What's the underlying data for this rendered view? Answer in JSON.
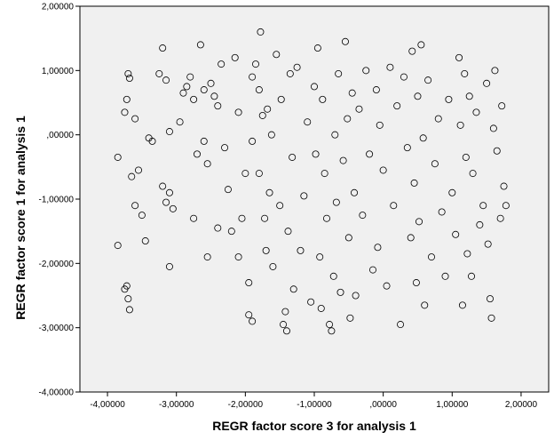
{
  "chart_data": {
    "type": "scatter",
    "xlabel": "REGR factor score   3 for analysis 1",
    "ylabel": "REGR factor score   1 for analysis 1",
    "xlim": [
      -4.4,
      2.4
    ],
    "ylim": [
      -4.0,
      2.0
    ],
    "x_ticks": [
      -4,
      -3,
      -2,
      -1,
      0,
      1,
      2
    ],
    "y_ticks": [
      -4,
      -3,
      -2,
      -1,
      0,
      1,
      2
    ],
    "x_tick_labels": [
      "-4,00000",
      "-3,00000",
      "-2,00000",
      "-1,00000",
      ",00000",
      "1,00000",
      "2,00000"
    ],
    "y_tick_labels": [
      "-4,00000",
      "-3,00000",
      "-2,00000",
      "-1,00000",
      ",00000",
      "1,00000",
      "2,00000"
    ],
    "grid": false,
    "plot_background": "#f0f0f0",
    "marker": "hollow-circle",
    "marker_color": "#000000",
    "points": [
      [
        -3.85,
        -0.35
      ],
      [
        -3.85,
        -1.72
      ],
      [
        -3.75,
        -2.4
      ],
      [
        -3.72,
        -2.35
      ],
      [
        -3.7,
        -2.55
      ],
      [
        -3.68,
        -2.72
      ],
      [
        -3.72,
        0.55
      ],
      [
        -3.7,
        0.95
      ],
      [
        -3.68,
        0.88
      ],
      [
        -3.75,
        0.35
      ],
      [
        -3.6,
        0.25
      ],
      [
        -3.65,
        -0.65
      ],
      [
        -3.55,
        -0.55
      ],
      [
        -3.6,
        -1.1
      ],
      [
        -3.5,
        -1.25
      ],
      [
        -3.45,
        -1.65
      ],
      [
        -3.4,
        -0.05
      ],
      [
        -3.35,
        -0.1
      ],
      [
        -3.2,
        1.35
      ],
      [
        -3.25,
        0.95
      ],
      [
        -3.15,
        0.85
      ],
      [
        -3.1,
        0.05
      ],
      [
        -3.2,
        -0.8
      ],
      [
        -3.15,
        -1.05
      ],
      [
        -3.1,
        -0.9
      ],
      [
        -3.05,
        -1.15
      ],
      [
        -3.1,
        -2.05
      ],
      [
        -2.95,
        0.2
      ],
      [
        -2.9,
        0.65
      ],
      [
        -2.85,
        0.75
      ],
      [
        -2.8,
        0.9
      ],
      [
        -2.75,
        0.55
      ],
      [
        -2.7,
        -0.3
      ],
      [
        -2.75,
        -1.3
      ],
      [
        -2.65,
        1.4
      ],
      [
        -2.6,
        0.7
      ],
      [
        -2.6,
        -0.1
      ],
      [
        -2.55,
        -0.45
      ],
      [
        -2.55,
        -1.9
      ],
      [
        -2.5,
        0.8
      ],
      [
        -2.45,
        0.6
      ],
      [
        -2.4,
        0.45
      ],
      [
        -2.4,
        -1.45
      ],
      [
        -2.35,
        1.1
      ],
      [
        -2.3,
        -0.2
      ],
      [
        -2.25,
        -0.85
      ],
      [
        -2.2,
        -1.5
      ],
      [
        -2.15,
        1.2
      ],
      [
        -2.1,
        0.35
      ],
      [
        -2.1,
        -1.9
      ],
      [
        -2.05,
        -1.3
      ],
      [
        -2.0,
        -0.6
      ],
      [
        -1.95,
        -2.3
      ],
      [
        -1.95,
        -2.8
      ],
      [
        -1.9,
        -2.9
      ],
      [
        -1.9,
        0.9
      ],
      [
        -1.9,
        -0.1
      ],
      [
        -1.85,
        1.1
      ],
      [
        -1.8,
        0.7
      ],
      [
        -1.8,
        -0.6
      ],
      [
        -1.78,
        1.6
      ],
      [
        -1.75,
        0.3
      ],
      [
        -1.72,
        -1.3
      ],
      [
        -1.7,
        -1.8
      ],
      [
        -1.68,
        0.4
      ],
      [
        -1.65,
        -0.9
      ],
      [
        -1.62,
        0.0
      ],
      [
        -1.6,
        -2.05
      ],
      [
        -1.55,
        1.25
      ],
      [
        -1.5,
        -1.1
      ],
      [
        -1.48,
        0.55
      ],
      [
        -1.45,
        -2.95
      ],
      [
        -1.42,
        -2.75
      ],
      [
        -1.4,
        -3.05
      ],
      [
        -1.38,
        -1.5
      ],
      [
        -1.35,
        0.95
      ],
      [
        -1.32,
        -0.35
      ],
      [
        -1.3,
        -2.4
      ],
      [
        -1.25,
        1.05
      ],
      [
        -1.2,
        -1.8
      ],
      [
        -1.15,
        -0.95
      ],
      [
        -1.1,
        0.2
      ],
      [
        -1.05,
        -2.6
      ],
      [
        -1.0,
        0.75
      ],
      [
        -0.98,
        -0.3
      ],
      [
        -0.95,
        1.35
      ],
      [
        -0.92,
        -1.9
      ],
      [
        -0.9,
        -2.7
      ],
      [
        -0.88,
        0.55
      ],
      [
        -0.85,
        -0.6
      ],
      [
        -0.82,
        -1.3
      ],
      [
        -0.78,
        -2.95
      ],
      [
        -0.75,
        -3.05
      ],
      [
        -0.72,
        -2.2
      ],
      [
        -0.7,
        0.0
      ],
      [
        -0.68,
        -1.05
      ],
      [
        -0.65,
        0.95
      ],
      [
        -0.62,
        -2.45
      ],
      [
        -0.58,
        -0.4
      ],
      [
        -0.55,
        1.45
      ],
      [
        -0.52,
        0.25
      ],
      [
        -0.5,
        -1.6
      ],
      [
        -0.48,
        -2.85
      ],
      [
        -0.45,
        0.65
      ],
      [
        -0.42,
        -0.9
      ],
      [
        -0.4,
        -2.5
      ],
      [
        -0.35,
        0.4
      ],
      [
        -0.3,
        -1.25
      ],
      [
        -0.25,
        1.0
      ],
      [
        -0.2,
        -0.3
      ],
      [
        -0.15,
        -2.1
      ],
      [
        -0.1,
        0.7
      ],
      [
        -0.08,
        -1.75
      ],
      [
        -0.05,
        0.15
      ],
      [
        0.0,
        -0.55
      ],
      [
        0.05,
        -2.35
      ],
      [
        0.1,
        1.05
      ],
      [
        0.15,
        -1.1
      ],
      [
        0.2,
        0.45
      ],
      [
        0.25,
        -2.95
      ],
      [
        0.3,
        0.9
      ],
      [
        0.35,
        -0.2
      ],
      [
        0.4,
        -1.6
      ],
      [
        0.42,
        1.3
      ],
      [
        0.45,
        -0.75
      ],
      [
        0.48,
        -2.3
      ],
      [
        0.5,
        0.6
      ],
      [
        0.52,
        -1.35
      ],
      [
        0.55,
        1.4
      ],
      [
        0.58,
        -0.05
      ],
      [
        0.6,
        -2.65
      ],
      [
        0.65,
        0.85
      ],
      [
        0.7,
        -1.9
      ],
      [
        0.75,
        -0.45
      ],
      [
        0.8,
        0.25
      ],
      [
        0.85,
        -1.2
      ],
      [
        0.9,
        -2.2
      ],
      [
        0.95,
        0.55
      ],
      [
        1.0,
        -0.9
      ],
      [
        1.05,
        -1.55
      ],
      [
        1.1,
        1.2
      ],
      [
        1.12,
        0.15
      ],
      [
        1.15,
        -2.65
      ],
      [
        1.18,
        0.95
      ],
      [
        1.2,
        -0.35
      ],
      [
        1.22,
        -1.85
      ],
      [
        1.25,
        0.6
      ],
      [
        1.28,
        -2.2
      ],
      [
        1.3,
        -0.6
      ],
      [
        1.35,
        0.35
      ],
      [
        1.4,
        -1.4
      ],
      [
        1.45,
        -1.1
      ],
      [
        1.5,
        0.8
      ],
      [
        1.52,
        -1.7
      ],
      [
        1.55,
        -2.55
      ],
      [
        1.57,
        -2.85
      ],
      [
        1.6,
        0.1
      ],
      [
        1.62,
        1.0
      ],
      [
        1.65,
        -0.25
      ],
      [
        1.7,
        -1.3
      ],
      [
        1.72,
        0.45
      ],
      [
        1.75,
        -0.8
      ],
      [
        1.78,
        -1.1
      ]
    ]
  }
}
